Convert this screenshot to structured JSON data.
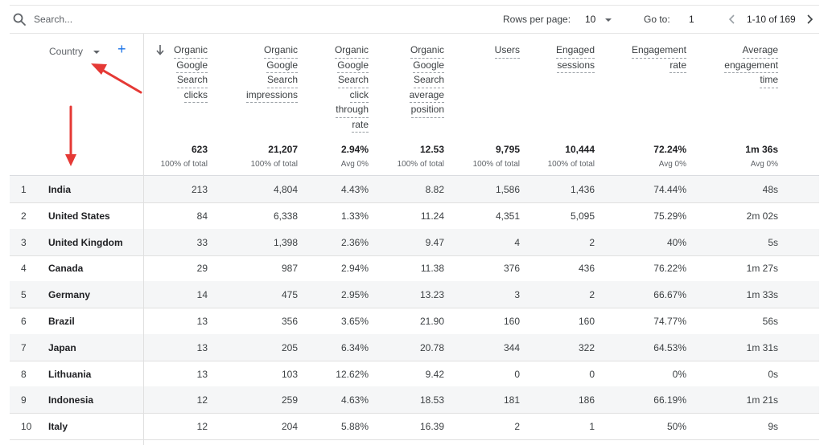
{
  "toolbar": {
    "search_placeholder": "Search...",
    "rows_per_page_label": "Rows per page:",
    "rows_per_page_value": "10",
    "goto_label": "Go to:",
    "goto_value": "1",
    "range_label": "1-10 of 169"
  },
  "dimension": {
    "label": "Country"
  },
  "columns": [
    {
      "lines": [
        "Organic",
        "Google",
        "Search",
        "clicks"
      ],
      "total": "623",
      "sub": "100% of total"
    },
    {
      "lines": [
        "Organic",
        "Google",
        "Search",
        "impressions"
      ],
      "total": "21,207",
      "sub": "100% of total"
    },
    {
      "lines": [
        "Organic",
        "Google",
        "Search",
        "click",
        "through",
        "rate"
      ],
      "total": "2.94%",
      "sub": "Avg 0%"
    },
    {
      "lines": [
        "Organic",
        "Google",
        "Search",
        "average",
        "position"
      ],
      "total": "12.53",
      "sub": "100% of total"
    },
    {
      "lines": [
        "Users"
      ],
      "total": "9,795",
      "sub": "100% of total"
    },
    {
      "lines": [
        "Engaged",
        "sessions"
      ],
      "total": "10,444",
      "sub": "100% of total"
    },
    {
      "lines": [
        "Engagement",
        "rate"
      ],
      "total": "72.24%",
      "sub": "Avg 0%"
    },
    {
      "lines": [
        "Average",
        "engagement",
        "time"
      ],
      "total": "1m 36s",
      "sub": "Avg 0%"
    }
  ],
  "rows": [
    {
      "rank": "1",
      "country": "India",
      "values": [
        "213",
        "4,804",
        "4.43%",
        "8.82",
        "1,586",
        "1,436",
        "74.44%",
        "48s"
      ]
    },
    {
      "rank": "2",
      "country": "United States",
      "values": [
        "84",
        "6,338",
        "1.33%",
        "11.24",
        "4,351",
        "5,095",
        "75.29%",
        "2m 02s"
      ]
    },
    {
      "rank": "3",
      "country": "United Kingdom",
      "values": [
        "33",
        "1,398",
        "2.36%",
        "9.47",
        "4",
        "2",
        "40%",
        "5s"
      ]
    },
    {
      "rank": "4",
      "country": "Canada",
      "values": [
        "29",
        "987",
        "2.94%",
        "11.38",
        "376",
        "436",
        "76.22%",
        "1m 27s"
      ]
    },
    {
      "rank": "5",
      "country": "Germany",
      "values": [
        "14",
        "475",
        "2.95%",
        "13.23",
        "3",
        "2",
        "66.67%",
        "1m 33s"
      ]
    },
    {
      "rank": "6",
      "country": "Brazil",
      "values": [
        "13",
        "356",
        "3.65%",
        "21.90",
        "160",
        "160",
        "74.77%",
        "56s"
      ]
    },
    {
      "rank": "7",
      "country": "Japan",
      "values": [
        "13",
        "205",
        "6.34%",
        "20.78",
        "344",
        "322",
        "64.53%",
        "1m 31s"
      ]
    },
    {
      "rank": "8",
      "country": "Lithuania",
      "values": [
        "13",
        "103",
        "12.62%",
        "9.42",
        "0",
        "0",
        "0%",
        "0s"
      ]
    },
    {
      "rank": "9",
      "country": "Indonesia",
      "values": [
        "12",
        "259",
        "4.63%",
        "18.53",
        "181",
        "186",
        "66.19%",
        "1m 21s"
      ]
    },
    {
      "rank": "10",
      "country": "Italy",
      "values": [
        "12",
        "204",
        "5.88%",
        "16.39",
        "2",
        "1",
        "50%",
        "9s"
      ]
    }
  ],
  "colors": {
    "accent": "#1a73e8",
    "annotation": "#e53935",
    "row_shade": "#f5f6f7"
  },
  "icons": [
    "search-icon",
    "caret-down-icon",
    "plus-icon",
    "sort-down-arrow-icon",
    "chevron-left-icon",
    "chevron-right-icon"
  ]
}
